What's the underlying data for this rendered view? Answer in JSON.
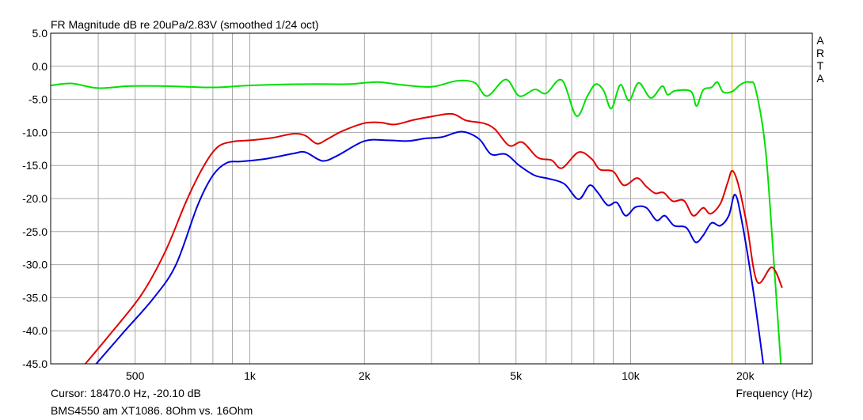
{
  "title": "FR Magnitude dB re 20uPa/2.83V (smoothed 1/24 oct)",
  "brand": [
    "A",
    "R",
    "T",
    "A"
  ],
  "cursor_text": "Cursor: 18470.0 Hz, -20.10 dB",
  "caption": "BMS4550 am XT1086. 8Ohm vs. 16Ohm",
  "xlabel": "Frequency (Hz)",
  "colors": {
    "green": "#00e000",
    "red": "#e00000",
    "blue": "#0000dd",
    "cursor": "#d4b000",
    "grid": "#a8a8a8"
  },
  "chart_data": {
    "type": "line",
    "x_scale": "log",
    "xlim": [
      300,
      30000
    ],
    "ylim": [
      -45,
      5
    ],
    "y_ticks": [
      5,
      0,
      -5,
      -10,
      -15,
      -20,
      -25,
      -30,
      -35,
      -40,
      -45
    ],
    "y_tick_labels": [
      "5.0",
      "0.0",
      "-5.0",
      "-10.0",
      "-15.0",
      "-20.0",
      "-25.0",
      "-30.0",
      "-35.0",
      "-40.0",
      "-45.0"
    ],
    "x_ticks": [
      500,
      1000,
      2000,
      5000,
      10000,
      20000
    ],
    "x_tick_labels": [
      "500",
      "1k",
      "2k",
      "5k",
      "10k",
      "20k"
    ],
    "cursor_x": 18470,
    "grid": true,
    "series": [
      {
        "color": "green",
        "points": [
          [
            300,
            -2.9
          ],
          [
            340,
            -2.6
          ],
          [
            400,
            -3.3
          ],
          [
            480,
            -3.0
          ],
          [
            600,
            -3.0
          ],
          [
            800,
            -3.2
          ],
          [
            1000,
            -2.9
          ],
          [
            1400,
            -2.7
          ],
          [
            1800,
            -2.7
          ],
          [
            2000,
            -2.5
          ],
          [
            2200,
            -2.4
          ],
          [
            2500,
            -2.8
          ],
          [
            3000,
            -3.1
          ],
          [
            3500,
            -2.2
          ],
          [
            3900,
            -2.5
          ],
          [
            4200,
            -4.5
          ],
          [
            4700,
            -2.0
          ],
          [
            5100,
            -4.5
          ],
          [
            5600,
            -3.5
          ],
          [
            6000,
            -4.1
          ],
          [
            6600,
            -2.1
          ],
          [
            7200,
            -7.5
          ],
          [
            7700,
            -4.5
          ],
          [
            8100,
            -2.7
          ],
          [
            8500,
            -3.7
          ],
          [
            8900,
            -6.4
          ],
          [
            9400,
            -2.8
          ],
          [
            9900,
            -5.2
          ],
          [
            10500,
            -2.5
          ],
          [
            11300,
            -4.8
          ],
          [
            12100,
            -3.0
          ],
          [
            12500,
            -4.3
          ],
          [
            13100,
            -3.7
          ],
          [
            14400,
            -3.8
          ],
          [
            14900,
            -6.0
          ],
          [
            15500,
            -3.6
          ],
          [
            16300,
            -3.2
          ],
          [
            16900,
            -2.4
          ],
          [
            17500,
            -3.9
          ],
          [
            18500,
            -3.8
          ],
          [
            19500,
            -2.7
          ],
          [
            20500,
            -2.4
          ],
          [
            21300,
            -3.5
          ],
          [
            22600,
            -12.5
          ],
          [
            23800,
            -30.0
          ],
          [
            24800,
            -45.0
          ]
        ]
      },
      {
        "color": "red",
        "points": [
          [
            370,
            -45.0
          ],
          [
            430,
            -40.5
          ],
          [
            520,
            -34.5
          ],
          [
            600,
            -28.0
          ],
          [
            680,
            -20.5
          ],
          [
            750,
            -15.5
          ],
          [
            820,
            -12.3
          ],
          [
            900,
            -11.4
          ],
          [
            1000,
            -11.2
          ],
          [
            1150,
            -10.8
          ],
          [
            1300,
            -10.2
          ],
          [
            1400,
            -10.5
          ],
          [
            1500,
            -11.7
          ],
          [
            1600,
            -11.0
          ],
          [
            1750,
            -9.8
          ],
          [
            2000,
            -8.6
          ],
          [
            2200,
            -8.5
          ],
          [
            2400,
            -8.8
          ],
          [
            2700,
            -8.1
          ],
          [
            3000,
            -7.6
          ],
          [
            3400,
            -7.2
          ],
          [
            3700,
            -8.2
          ],
          [
            4100,
            -8.6
          ],
          [
            4400,
            -9.5
          ],
          [
            4800,
            -12.0
          ],
          [
            5200,
            -11.5
          ],
          [
            5700,
            -13.8
          ],
          [
            6200,
            -14.2
          ],
          [
            6600,
            -15.4
          ],
          [
            7300,
            -13.0
          ],
          [
            7900,
            -14.0
          ],
          [
            8300,
            -15.6
          ],
          [
            9000,
            -15.9
          ],
          [
            9600,
            -18.0
          ],
          [
            10400,
            -16.9
          ],
          [
            11000,
            -18.2
          ],
          [
            11600,
            -19.2
          ],
          [
            12200,
            -19.1
          ],
          [
            12900,
            -20.4
          ],
          [
            13800,
            -20.3
          ],
          [
            14600,
            -22.6
          ],
          [
            15500,
            -21.4
          ],
          [
            16200,
            -22.3
          ],
          [
            17200,
            -20.8
          ],
          [
            18000,
            -17.5
          ],
          [
            18500,
            -15.8
          ],
          [
            19200,
            -18.0
          ],
          [
            20200,
            -24.0
          ],
          [
            21500,
            -32.6
          ],
          [
            23500,
            -30.4
          ],
          [
            25000,
            -33.5
          ]
        ]
      },
      {
        "color": "blue",
        "points": [
          [
            395,
            -45.0
          ],
          [
            470,
            -40.0
          ],
          [
            560,
            -35.0
          ],
          [
            640,
            -30.0
          ],
          [
            730,
            -21.0
          ],
          [
            800,
            -16.5
          ],
          [
            870,
            -14.6
          ],
          [
            950,
            -14.4
          ],
          [
            1100,
            -14.0
          ],
          [
            1300,
            -13.2
          ],
          [
            1400,
            -13.0
          ],
          [
            1550,
            -14.3
          ],
          [
            1700,
            -13.5
          ],
          [
            2000,
            -11.3
          ],
          [
            2300,
            -11.2
          ],
          [
            2600,
            -11.3
          ],
          [
            2900,
            -10.9
          ],
          [
            3200,
            -10.7
          ],
          [
            3600,
            -9.9
          ],
          [
            4000,
            -11.0
          ],
          [
            4300,
            -13.3
          ],
          [
            4700,
            -13.3
          ],
          [
            5100,
            -15.0
          ],
          [
            5600,
            -16.5
          ],
          [
            6100,
            -17.0
          ],
          [
            6700,
            -17.8
          ],
          [
            7300,
            -20.1
          ],
          [
            7800,
            -18.0
          ],
          [
            8200,
            -19.1
          ],
          [
            8700,
            -21.0
          ],
          [
            9200,
            -20.6
          ],
          [
            9700,
            -22.6
          ],
          [
            10300,
            -21.3
          ],
          [
            11000,
            -21.4
          ],
          [
            11700,
            -23.3
          ],
          [
            12300,
            -22.6
          ],
          [
            13000,
            -24.1
          ],
          [
            14000,
            -24.4
          ],
          [
            14800,
            -26.6
          ],
          [
            15500,
            -25.6
          ],
          [
            16300,
            -23.7
          ],
          [
            17200,
            -24.1
          ],
          [
            18100,
            -22.6
          ],
          [
            18800,
            -19.4
          ],
          [
            19600,
            -23.5
          ],
          [
            21000,
            -34.0
          ],
          [
            22300,
            -45.0
          ]
        ]
      }
    ]
  }
}
